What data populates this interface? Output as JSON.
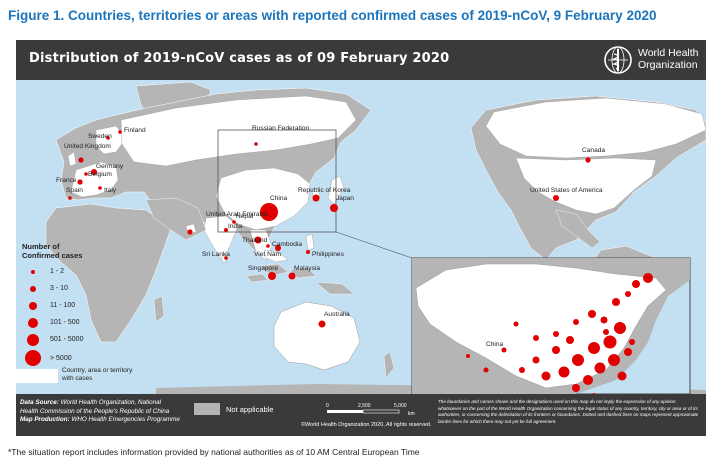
{
  "figure_title": "Figure 1. Countries, territories or areas with reported confirmed cases of 2019-nCoV, 9 February 2020",
  "map_title": "Distribution of 2019-nCoV cases as of 09 February 2020",
  "who_logo": {
    "icon": "who-emblem-icon",
    "line1": "World Health",
    "line2": "Organization"
  },
  "country_labels": [
    "Finland",
    "Sweden",
    "United Kingdom",
    "Germany",
    "Belgium",
    "France",
    "Italy",
    "Spain",
    "Russian Federation",
    "Canada",
    "United States of America",
    "China",
    "Republic of Korea",
    "Japan",
    "Nepal",
    "India",
    "United Arab Emirates",
    "Thailand",
    "Cambodia",
    "Viet Nam",
    "Philippines",
    "Sri Lanka",
    "Singapore",
    "Malaysia",
    "Australia"
  ],
  "inset_label": "China",
  "legend": {
    "title_line1": "Number of",
    "title_line2": "Confirmed cases",
    "classes": [
      "1 - 2",
      "3 - 10",
      "11 - 100",
      "101 - 500",
      "501 - 5000",
      "> 5000"
    ],
    "area_label_line1": "Country, area or territory",
    "area_label_line2": "with cases",
    "dot_color": "#e00000"
  },
  "footer": {
    "source_label": "Data Source:",
    "source_text_line1": "World Health Organization, National",
    "source_text_line2": "Health Commission of the People's Republic of China",
    "production_label": "Map Production:",
    "production_text": "WHO Health Emergencies Programme",
    "not_applicable": "Not applicable",
    "scale_0": "0",
    "scale_1": "2,500",
    "scale_2": "5,000",
    "scale_unit": "km",
    "copyright": "©World Health Organization 2020, All rights reserved.",
    "disclaimer": "The boundaries and names shown and the designations used on this map do not imply the expression of any opinion whatsoever on the part of the World Health Organization concerning the legal status of any country, territory, city or area or of its authorities, or concerning the delimitation of its frontiers or boundaries. Dotted and dashed lines on maps represent approximate border lines for which there may not yet be full agreement."
  },
  "footnote": "*The situation report includes information provided by national authorities as of 10 AM Central European Time",
  "colors": {
    "title_blue": "#1b75bc",
    "ocean": "#c3dff2",
    "land": "#b5b5b5",
    "affected": "#ffffff",
    "header": "#3a3a3a",
    "case_dot": "#e00000"
  }
}
